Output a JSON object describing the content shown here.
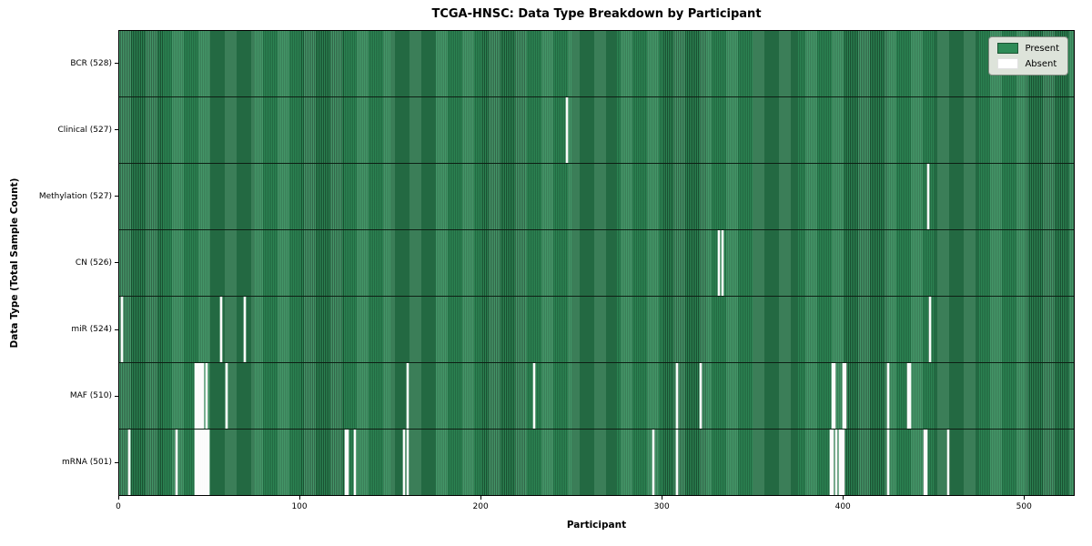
{
  "title": "TCGA-HNSC: Data Type Breakdown by Participant",
  "colors": {
    "present": "#2e8b57",
    "present_edge": "#1c5434",
    "absent": "#fbfbfb",
    "legend_bg": "#dde3da",
    "legend_border": "#7f8b80"
  },
  "legend": {
    "present_label": "Present",
    "absent_label": "Absent"
  },
  "chart_data": {
    "type": "heatmap",
    "title": "TCGA-HNSC: Data Type Breakdown by Participant",
    "xlabel": "Participant",
    "ylabel": "Data Type (Total Sample Count)",
    "x_range": [
      0,
      528
    ],
    "x_ticks": [
      0,
      100,
      200,
      300,
      400,
      500
    ],
    "legend": [
      "Present",
      "Absent"
    ],
    "legend_position": "upper right",
    "grid": false,
    "rows": [
      {
        "name": "BCR",
        "label": "BCR (528)",
        "total": 528,
        "absent_participants": []
      },
      {
        "name": "Clinical",
        "label": "Clinical (527)",
        "total": 527,
        "absent_participants": [
          247
        ]
      },
      {
        "name": "Methylation",
        "label": "Methylation (527)",
        "total": 527,
        "absent_participants": [
          447
        ]
      },
      {
        "name": "CN",
        "label": "CN (526)",
        "total": 526,
        "absent_participants": [
          331,
          333
        ]
      },
      {
        "name": "miR",
        "label": "miR (524)",
        "total": 524,
        "absent_participants": [
          1,
          56,
          69,
          448
        ]
      },
      {
        "name": "MAF",
        "label": "MAF (510)",
        "total": 510,
        "absent_participants": [
          42,
          43,
          44,
          45,
          46,
          48,
          59,
          159,
          229,
          308,
          321,
          394,
          395,
          400,
          401,
          425,
          436,
          437
        ]
      },
      {
        "name": "mRNA",
        "label": "mRNA (501)",
        "total": 501,
        "absent_participants": [
          5,
          31,
          42,
          43,
          44,
          45,
          46,
          47,
          48,
          49,
          125,
          126,
          130,
          157,
          159,
          295,
          308,
          393,
          394,
          396,
          398,
          399,
          400,
          425,
          445,
          446,
          458
        ]
      }
    ]
  }
}
